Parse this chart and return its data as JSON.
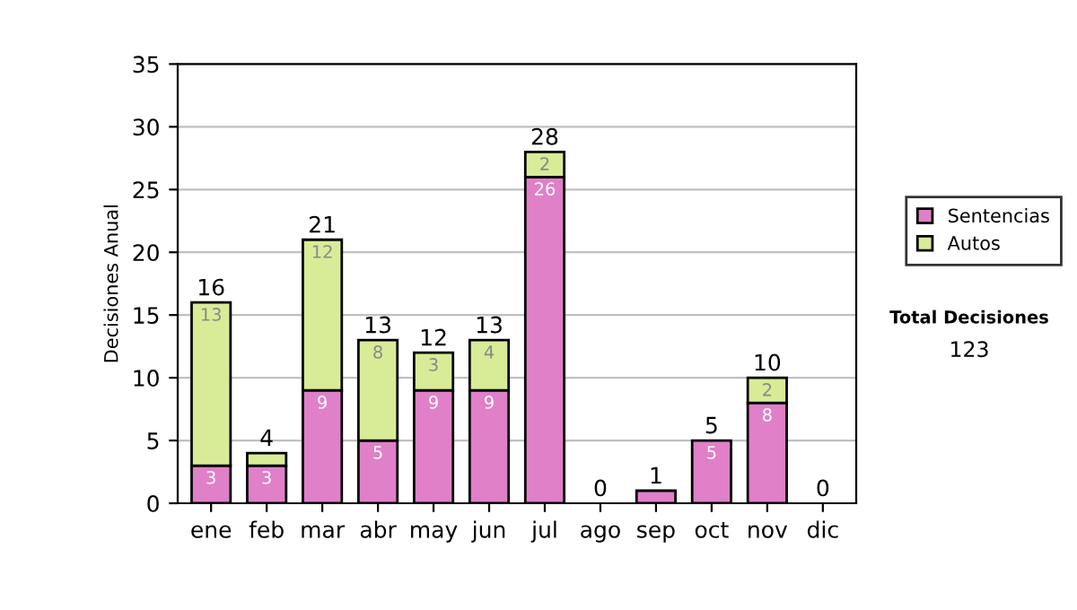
{
  "chart_data": {
    "type": "bar",
    "ylabel": "Decisiones Anual",
    "stacked": true,
    "categories": [
      "ene",
      "feb",
      "mar",
      "abr",
      "may",
      "jun",
      "jul",
      "ago",
      "sep",
      "oct",
      "nov",
      "dic"
    ],
    "series": [
      {
        "name": "Sentencias",
        "color": "#e080c8",
        "values": [
          3,
          3,
          9,
          5,
          9,
          9,
          26,
          0,
          1,
          5,
          8,
          0
        ],
        "value_labels": [
          "3",
          "3",
          "9",
          "5",
          "9",
          "9",
          "26",
          null,
          null,
          "5",
          "8",
          null
        ]
      },
      {
        "name": "Autos",
        "color": "#d8ec98",
        "values": [
          13,
          1,
          12,
          8,
          3,
          4,
          2,
          0,
          0,
          0,
          2,
          0
        ],
        "value_labels": [
          "13",
          null,
          "12",
          "8",
          "3",
          "4",
          "2",
          null,
          null,
          null,
          "2",
          null
        ]
      }
    ],
    "totals": [
      "16",
      "4",
      "21",
      "13",
      "12",
      "13",
      "28",
      "0",
      "1",
      "5",
      "10",
      "0"
    ],
    "ylim": [
      0,
      35
    ],
    "yticks": [
      0,
      5,
      10,
      15,
      20,
      25,
      30,
      35
    ],
    "grid": "y",
    "legend": "right",
    "annotations": [
      "Total Decisiones",
      "123"
    ]
  }
}
